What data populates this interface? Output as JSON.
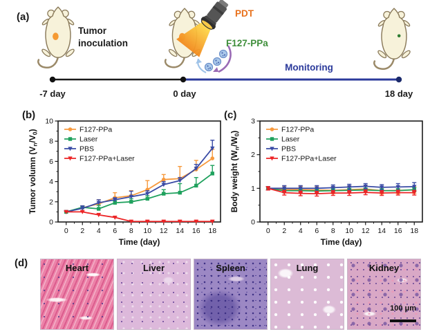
{
  "figure": {
    "panel_a": {
      "label": "(a)",
      "tumor_inoculation": "Tumor inoculation",
      "pdt": "PDT",
      "f127_ppa": "F127-PPa",
      "monitoring": "Monitoring",
      "timeline": {
        "start": "-7 day",
        "mid": "0 day",
        "end": "18 day"
      }
    },
    "panel_b": {
      "label": "(b)"
    },
    "panel_c": {
      "label": "(c)"
    },
    "panel_d": {
      "label": "(d)",
      "organs": [
        "Heart",
        "Liver",
        "Spleen",
        "Lung",
        "Kidney"
      ],
      "scale_bar": "100 μm"
    }
  },
  "colors": {
    "accent_orange": "#F79A3E",
    "accent_green": "#1FA15D",
    "accent_blue": "#3A4BA5",
    "accent_red": "#EC2426",
    "pdt_label": "#E8711C",
    "f127_label": "#3E8E3A",
    "monitoring_label": "#2B3A9B",
    "timeline_black": "#1a1a1a",
    "timeline_blue": "#2B3A9B",
    "tumor_orange": "#F59A33",
    "tumor_green": "#2F7D33",
    "mouse_body": "#F7F2DA",
    "mouse_outline": "#8A7A5A"
  },
  "chart_data": [
    {
      "panel": "b",
      "type": "line",
      "title": "",
      "xlabel": "Time (day)",
      "ylabel": "Tumor volumn (Vn/V0)",
      "ylabel_parts": [
        {
          "t": "Tumor volumn (V"
        },
        {
          "t": "n",
          "sub": true
        },
        {
          "t": "/V"
        },
        {
          "t": "0",
          "sub": true
        },
        {
          "t": ")"
        }
      ],
      "x": [
        0,
        2,
        4,
        6,
        8,
        10,
        12,
        14,
        16,
        18
      ],
      "xlim": [
        -1,
        19
      ],
      "xticks": [
        0,
        2,
        4,
        6,
        8,
        10,
        12,
        14,
        16,
        18
      ],
      "xminor": [
        1,
        3,
        5,
        7,
        9,
        11,
        13,
        15,
        17
      ],
      "ylim": [
        0,
        10
      ],
      "yticks": [
        0,
        2,
        4,
        6,
        8,
        10
      ],
      "yminor": [
        1,
        3,
        5,
        7,
        9
      ],
      "grid": false,
      "legend_position": "top-left",
      "error_style": "up",
      "series": [
        {
          "name": "F127-PPa",
          "color": "#F79A3E",
          "marker": "circle",
          "values": [
            1.0,
            1.4,
            1.8,
            2.4,
            2.6,
            3.2,
            4.2,
            4.3,
            5.2,
            6.3
          ],
          "errors": [
            0.1,
            0.2,
            0.4,
            0.5,
            0.5,
            0.9,
            0.5,
            1.2,
            0.9,
            0.9
          ]
        },
        {
          "name": "Laser",
          "color": "#1FA15D",
          "marker": "square",
          "values": [
            1.0,
            1.45,
            1.3,
            1.9,
            2.0,
            2.3,
            2.8,
            2.9,
            3.6,
            4.8
          ],
          "errors": [
            0.1,
            0.15,
            0.35,
            0.2,
            0.3,
            0.3,
            0.4,
            0.9,
            0.8,
            0.8
          ]
        },
        {
          "name": "PBS",
          "color": "#3A4BA5",
          "marker": "triangle-down",
          "values": [
            1.0,
            1.35,
            1.9,
            2.2,
            2.5,
            2.8,
            3.7,
            4.1,
            5.3,
            7.3
          ],
          "errors": [
            0.1,
            0.25,
            0.3,
            0.2,
            0.55,
            0.3,
            0.3,
            0.3,
            0.4,
            0.8
          ]
        },
        {
          "name": "F127-PPa+Laser",
          "color": "#EC2426",
          "marker": "triangle-down",
          "values": [
            1.0,
            1.0,
            0.7,
            0.45,
            0.05,
            0.05,
            0.05,
            0.05,
            0.05,
            0.05
          ],
          "errors": [
            0.05,
            0.1,
            0.15,
            0.1,
            0.08,
            0.08,
            0.08,
            0.08,
            0.08,
            0.08
          ]
        }
      ]
    },
    {
      "panel": "c",
      "type": "line",
      "title": "",
      "xlabel": "Time (day)",
      "ylabel": "Body weight (Wn/W0)",
      "ylabel_parts": [
        {
          "t": "Body weight (W"
        },
        {
          "t": "n",
          "sub": true
        },
        {
          "t": "/W"
        },
        {
          "t": "0",
          "sub": true
        },
        {
          "t": ")"
        }
      ],
      "x": [
        0,
        2,
        4,
        6,
        8,
        10,
        12,
        14,
        16,
        18
      ],
      "xlim": [
        -1,
        19
      ],
      "xticks": [
        0,
        2,
        4,
        6,
        8,
        10,
        12,
        14,
        16,
        18
      ],
      "xminor": [
        1,
        3,
        5,
        7,
        9,
        11,
        13,
        15,
        17
      ],
      "ylim": [
        0,
        3
      ],
      "yticks": [
        0,
        1,
        2,
        3
      ],
      "yminor": [
        0.5,
        1.5,
        2.5
      ],
      "grid": false,
      "legend_position": "top-left",
      "error_style": "both",
      "series": [
        {
          "name": "F127-PPa",
          "color": "#F79A3E",
          "marker": "circle",
          "values": [
            1.0,
            0.97,
            0.96,
            0.95,
            0.94,
            0.96,
            0.98,
            0.93,
            0.94,
            0.95
          ],
          "errors": [
            0.05,
            0.1,
            0.1,
            0.1,
            0.1,
            0.1,
            0.1,
            0.1,
            0.1,
            0.1
          ]
        },
        {
          "name": "Laser",
          "color": "#1FA15D",
          "marker": "square",
          "values": [
            1.0,
            0.93,
            0.93,
            0.92,
            0.93,
            0.94,
            0.95,
            0.93,
            0.93,
            0.96
          ],
          "errors": [
            0.05,
            0.06,
            0.06,
            0.06,
            0.06,
            0.06,
            0.06,
            0.06,
            0.06,
            0.06
          ]
        },
        {
          "name": "PBS",
          "color": "#3A4BA5",
          "marker": "triangle-down",
          "values": [
            1.0,
            1.0,
            1.0,
            1.0,
            1.02,
            1.04,
            1.06,
            1.03,
            1.04,
            1.05
          ],
          "errors": [
            0.05,
            0.08,
            0.08,
            0.08,
            0.08,
            0.08,
            0.08,
            0.08,
            0.1,
            0.12
          ]
        },
        {
          "name": "F127-PPa+Laser",
          "color": "#EC2426",
          "marker": "triangle-down",
          "values": [
            1.0,
            0.87,
            0.85,
            0.84,
            0.86,
            0.86,
            0.88,
            0.86,
            0.87,
            0.87
          ],
          "errors": [
            0.05,
            0.07,
            0.07,
            0.07,
            0.07,
            0.07,
            0.07,
            0.07,
            0.07,
            0.07
          ]
        }
      ]
    }
  ]
}
